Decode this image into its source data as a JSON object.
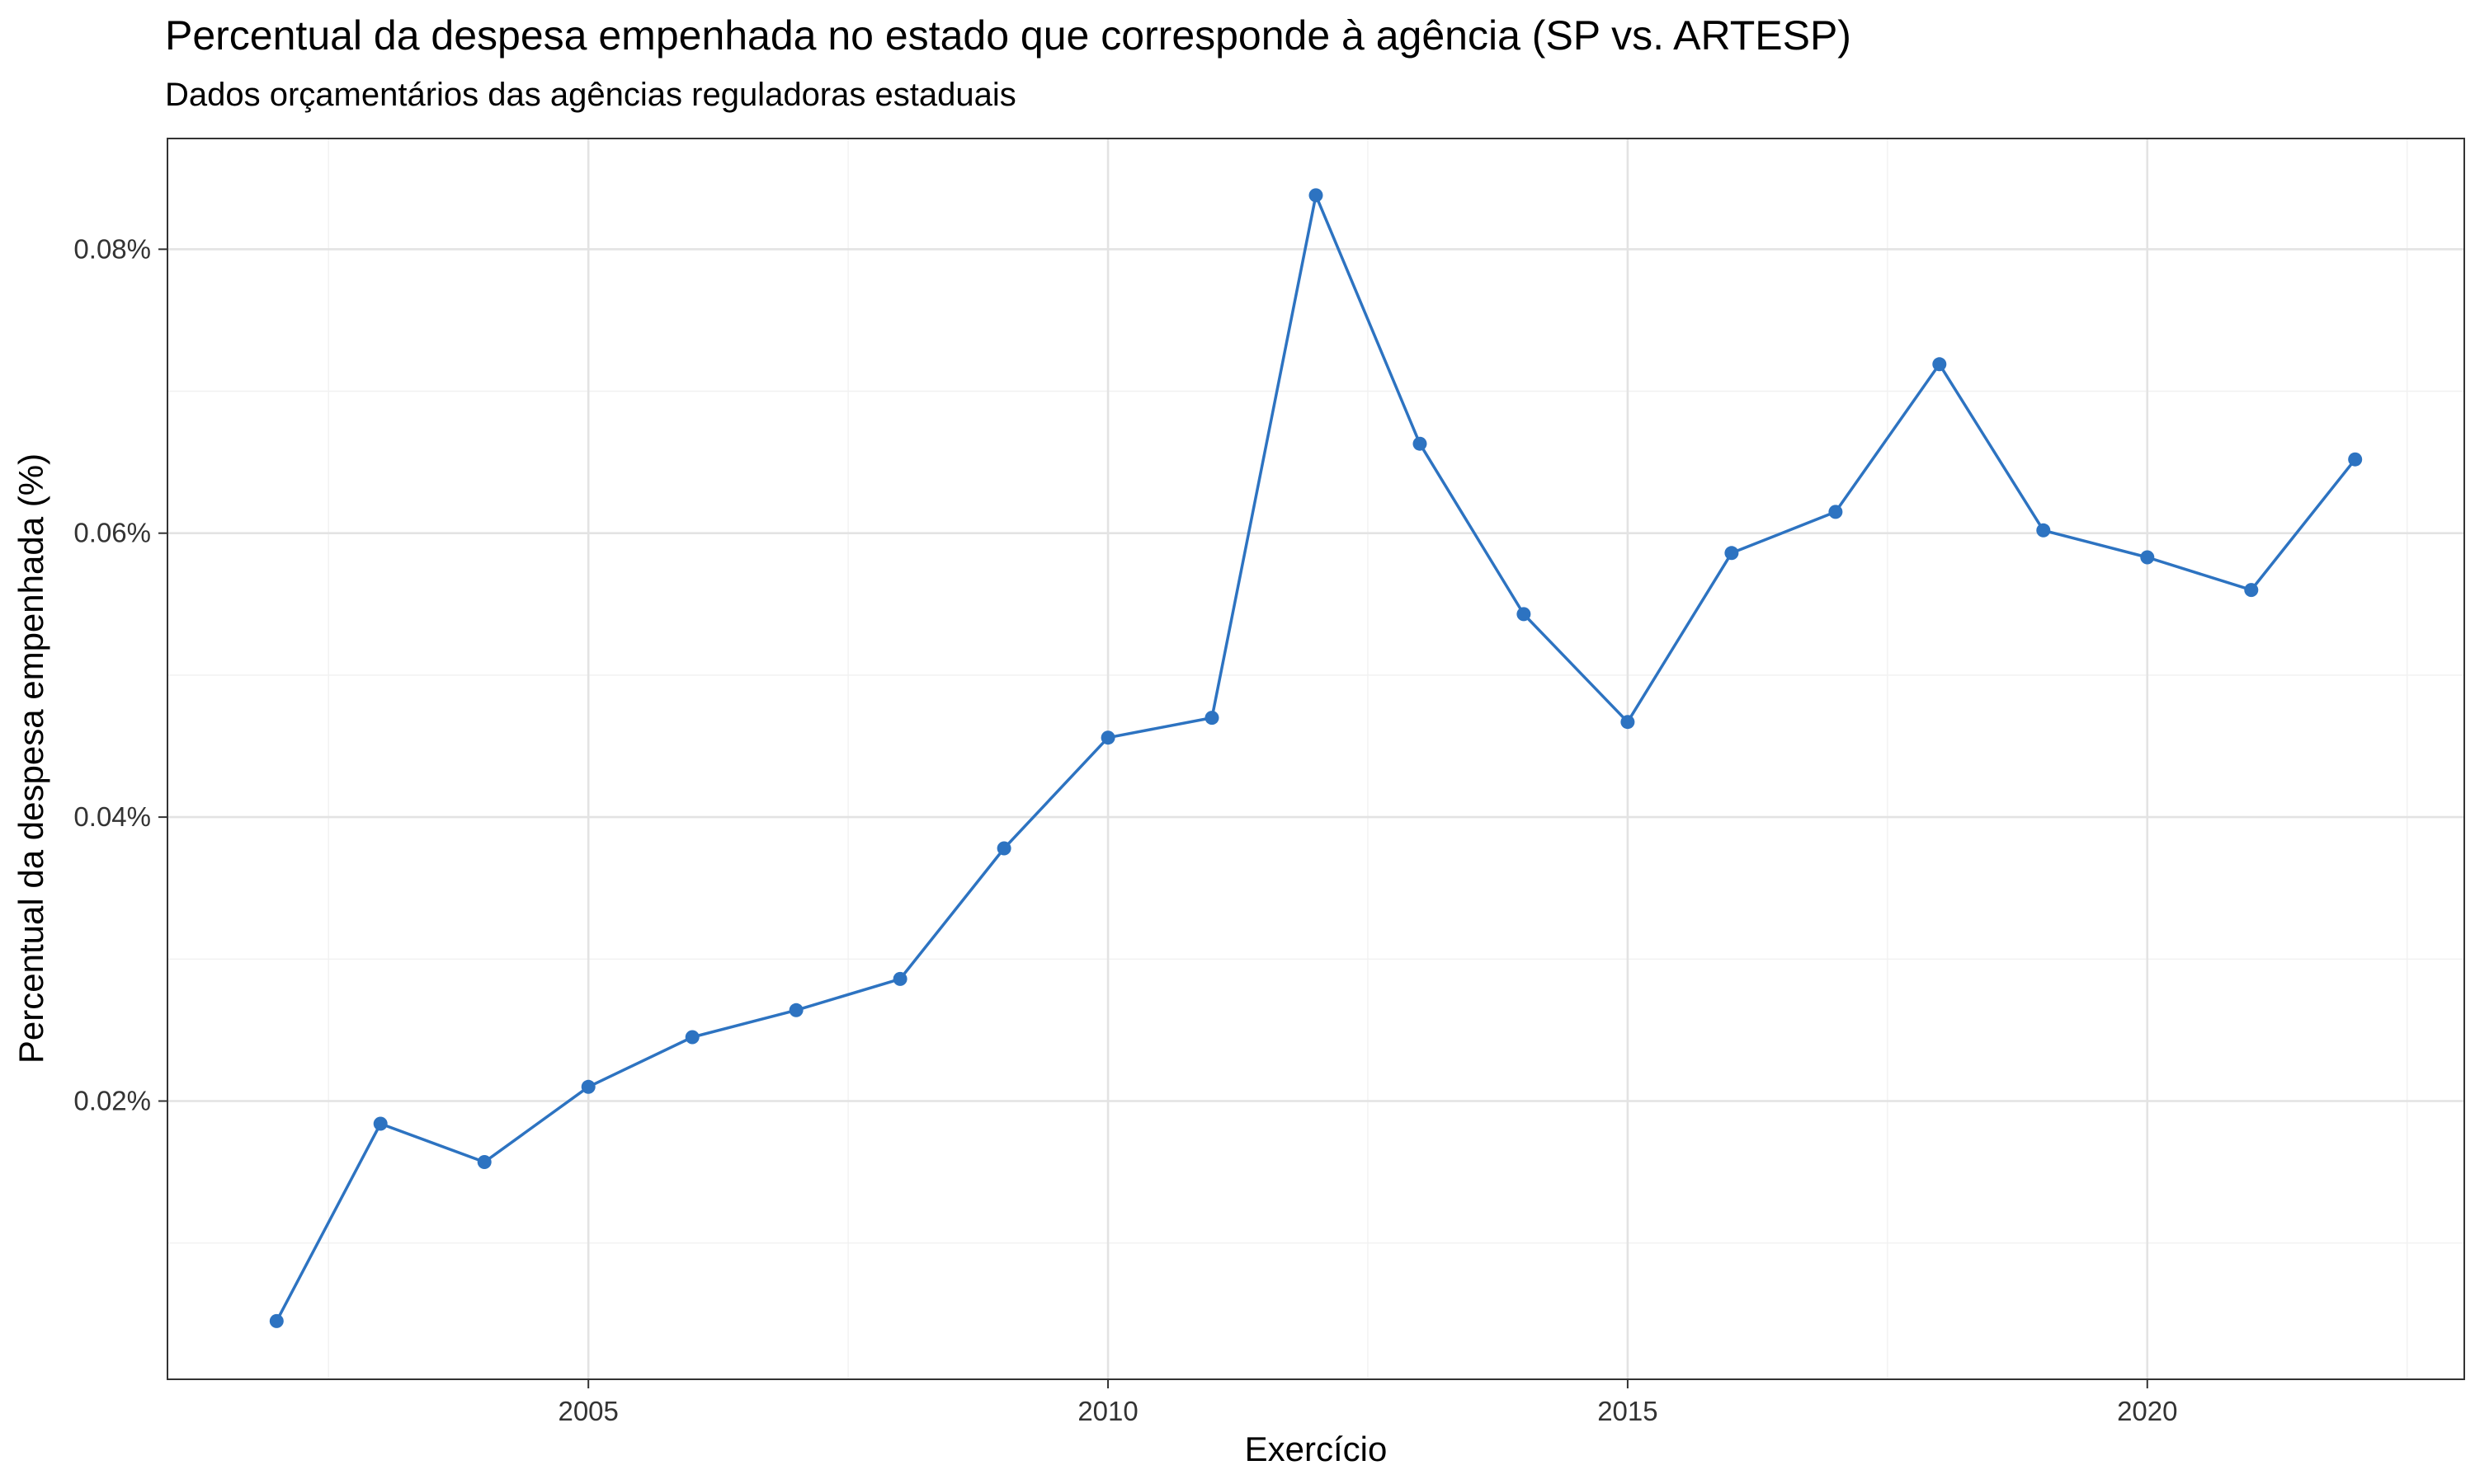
{
  "chart_data": {
    "type": "line",
    "title": "Percentual da despesa empenhada no estado que corresponde à agência (SP vs. ARTESP)",
    "subtitle": "Dados orçamentários das agências reguladoras estaduais",
    "xlabel": "Exercício",
    "ylabel": "Percentual da despesa empenhada (%)",
    "x": [
      2002,
      2003,
      2004,
      2005,
      2006,
      2007,
      2008,
      2009,
      2010,
      2011,
      2012,
      2013,
      2014,
      2015,
      2016,
      2017,
      2018,
      2019,
      2020,
      2021,
      2022
    ],
    "y": [
      0.0045,
      0.0184,
      0.0157,
      0.021,
      0.0245,
      0.0264,
      0.0286,
      0.0378,
      0.0456,
      0.047,
      0.0838,
      0.0663,
      0.0543,
      0.0467,
      0.0586,
      0.0615,
      0.0719,
      0.0602,
      0.0583,
      0.056,
      0.0652
    ],
    "xlim": [
      2000.95,
      2023.05
    ],
    "ylim": [
      0.0004,
      0.0878
    ],
    "x_ticks": [
      2005,
      2010,
      2015,
      2020
    ],
    "x_tick_labels": [
      "2005",
      "2010",
      "2015",
      "2020"
    ],
    "y_ticks": [
      0.02,
      0.04,
      0.06,
      0.08
    ],
    "y_tick_labels": [
      "0.02%",
      "0.04%",
      "0.06%",
      "0.08%"
    ],
    "grid": true,
    "series_color": "#2d73c1"
  }
}
